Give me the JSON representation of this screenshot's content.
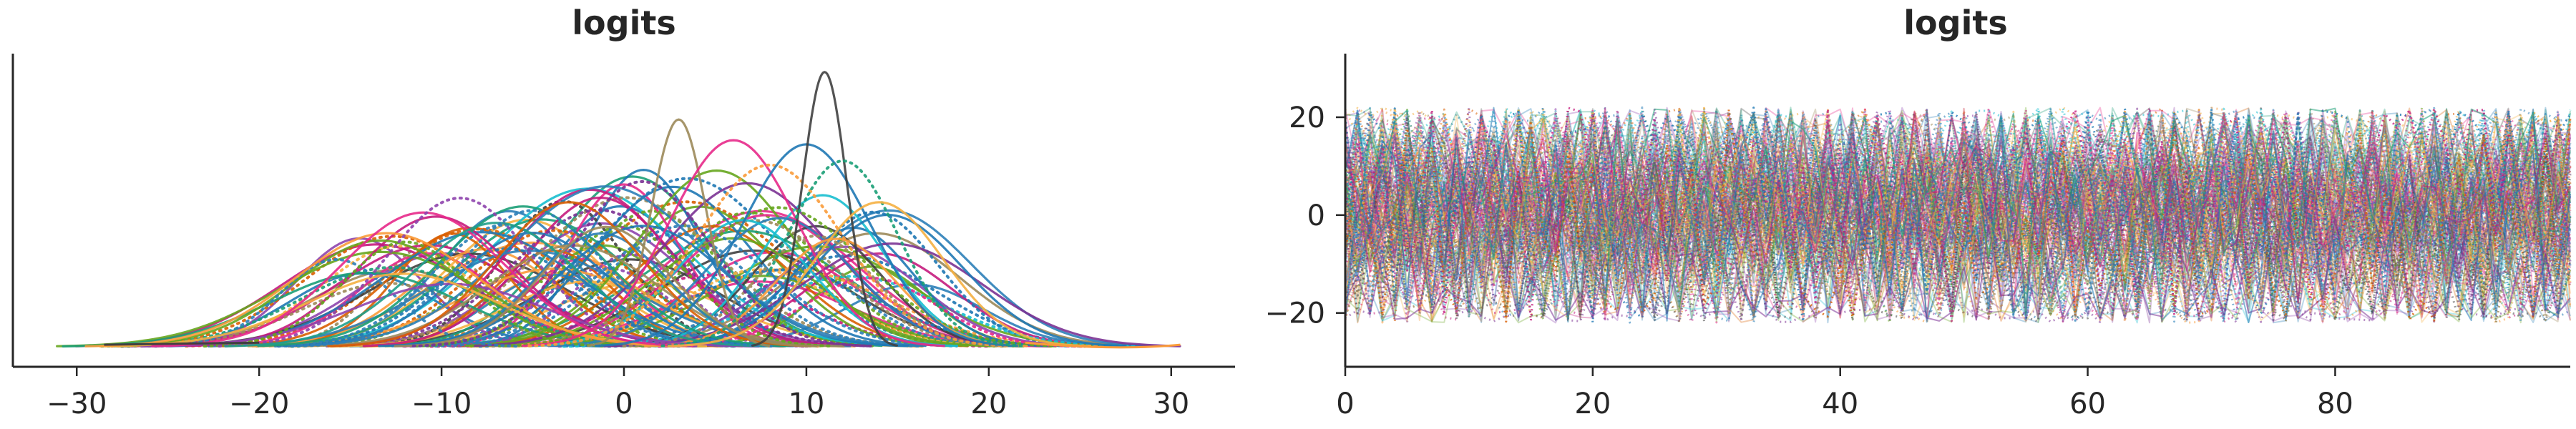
{
  "chart_data": [
    {
      "type": "line",
      "subtype": "kde",
      "title": "logits",
      "xlabel": "",
      "ylabel": "",
      "xlim": [
        -33.5,
        33.5
      ],
      "xticks": [
        -30,
        -20,
        -10,
        0,
        10,
        20,
        30
      ],
      "xtick_labels": [
        "−30",
        "−20",
        "−10",
        "0",
        "10",
        "20",
        "30"
      ],
      "yticks": [],
      "grid": false,
      "legend": "none",
      "line_styles": [
        "solid",
        "dotted"
      ],
      "series_approx": [
        {
          "center": -13,
          "width": 5,
          "peak": 0.55,
          "color": "#fa9b3a",
          "style": "solid"
        },
        {
          "center": -11,
          "width": 4.5,
          "peak": 0.65,
          "color": "#e7298a",
          "style": "solid"
        },
        {
          "center": -9,
          "width": 4,
          "peak": 0.72,
          "color": "#8e44ad",
          "style": "dotted"
        },
        {
          "center": -7,
          "width": 4.5,
          "peak": 0.6,
          "color": "#1f9e89",
          "style": "solid"
        },
        {
          "center": -5,
          "width": 4,
          "peak": 0.66,
          "color": "#2c7fb8",
          "style": "dotted"
        },
        {
          "center": -3,
          "width": 4,
          "peak": 0.7,
          "color": "#d95f02",
          "style": "solid"
        },
        {
          "center": -1,
          "width": 3.5,
          "peak": 0.58,
          "color": "#9c8a5a",
          "style": "solid"
        },
        {
          "center": 1,
          "width": 3.8,
          "peak": 0.8,
          "color": "#7b3294",
          "style": "dotted"
        },
        {
          "center": 3,
          "width": 1.5,
          "peak": 1.1,
          "color": "#9c8a5a",
          "style": "solid"
        },
        {
          "center": 6,
          "width": 3.5,
          "peak": 1.0,
          "color": "#e7298a",
          "style": "solid"
        },
        {
          "center": 8,
          "width": 4,
          "peak": 0.88,
          "color": "#fa9b3a",
          "style": "dotted"
        },
        {
          "center": 10,
          "width": 3.5,
          "peak": 0.98,
          "color": "#1f78b4",
          "style": "solid"
        },
        {
          "center": 11,
          "width": 1.2,
          "peak": 1.33,
          "color": "#404040",
          "style": "solid"
        },
        {
          "center": 12,
          "width": 3,
          "peak": 0.9,
          "color": "#1b9e77",
          "style": "dotted"
        },
        {
          "center": 14,
          "width": 3.5,
          "peak": 0.7,
          "color": "#f5b041",
          "style": "solid"
        }
      ]
    },
    {
      "type": "line",
      "subtype": "trace",
      "title": "logits",
      "xlabel": "",
      "ylabel": "",
      "xlim": [
        0,
        99
      ],
      "ylim": [
        -31,
        33
      ],
      "xticks": [
        0,
        20,
        40,
        60,
        80
      ],
      "xtick_labels": [
        "0",
        "20",
        "40",
        "60",
        "80"
      ],
      "yticks": [
        -20,
        0,
        20
      ],
      "ytick_labels": [
        "−20",
        "0",
        "20"
      ],
      "grid": false,
      "legend": "none",
      "line_styles": [
        "solid",
        "dotted"
      ],
      "value_band": [
        -22,
        22
      ],
      "draws": 100
    }
  ],
  "colors": {
    "palette": [
      "#fa9b3a",
      "#e7298a",
      "#1b9e77",
      "#2c7fb8",
      "#8e44ad",
      "#9c8a5a",
      "#404040",
      "#f5b041",
      "#17becf",
      "#d95f02",
      "#7b3294",
      "#1f78b4",
      "#66a61e",
      "#c51b7d"
    ],
    "axis": "#262626",
    "background": "#ffffff"
  }
}
